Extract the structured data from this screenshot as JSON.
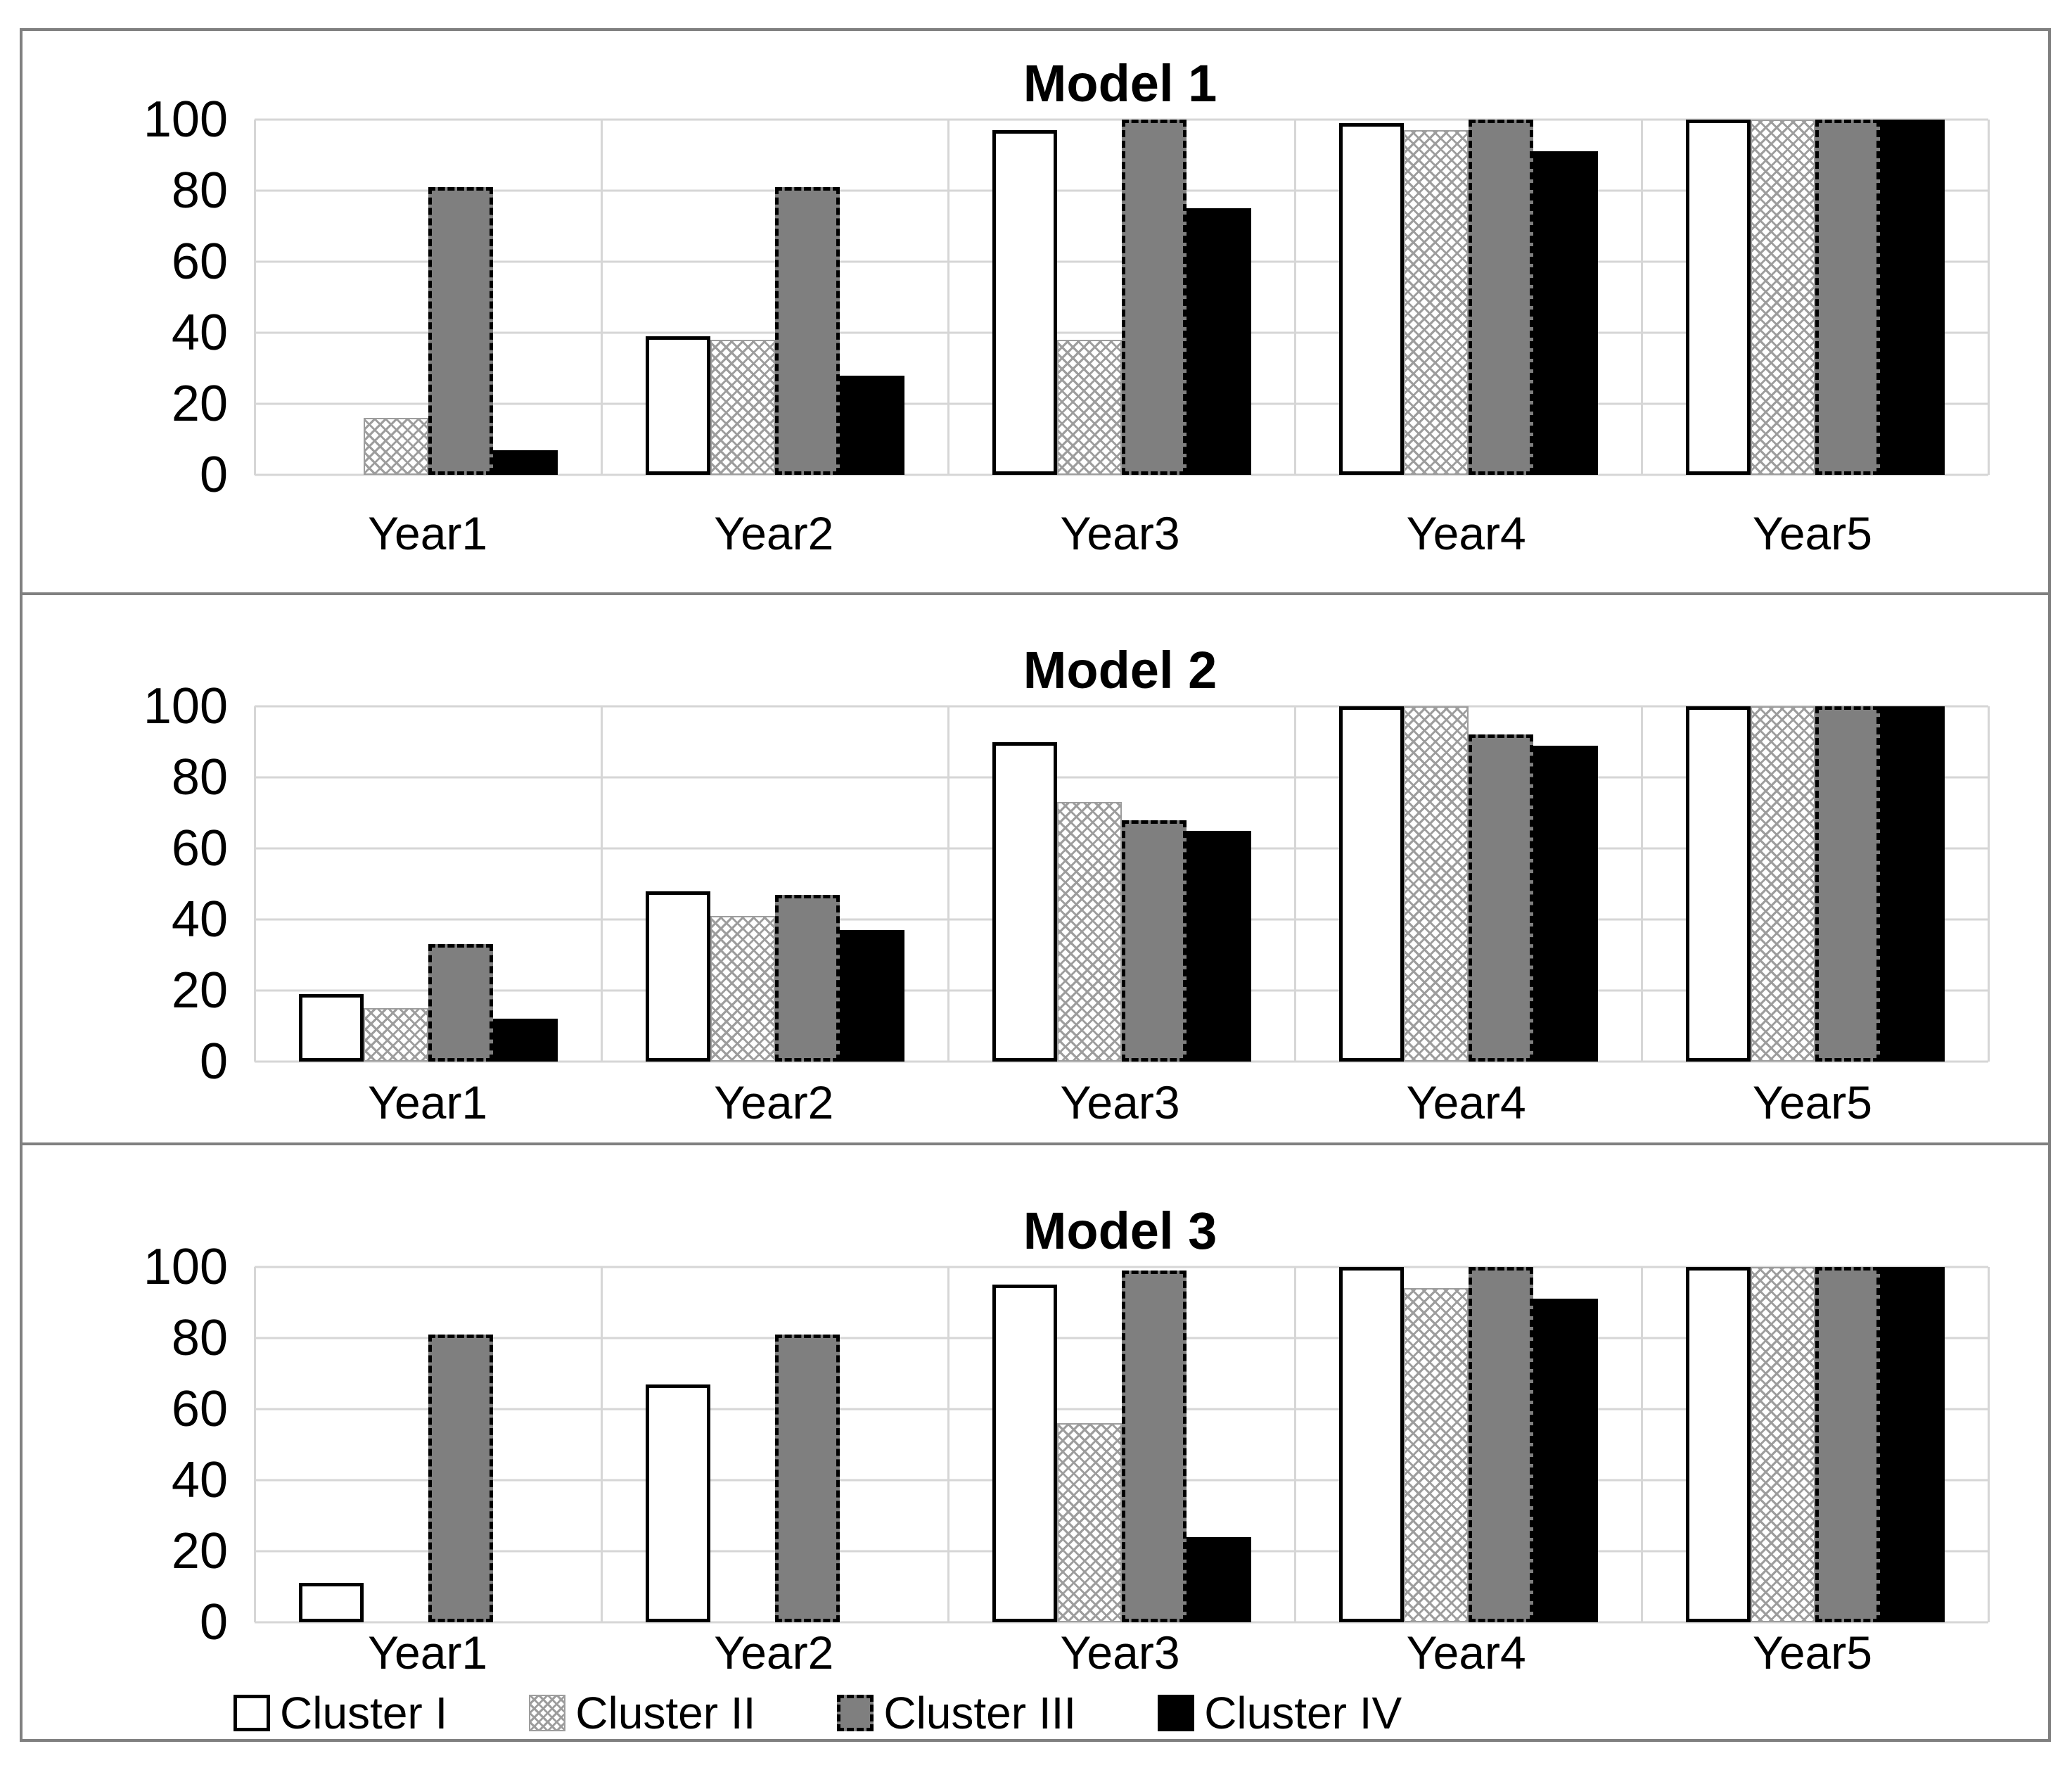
{
  "figure": {
    "background": "#ffffff",
    "frame_border_color": "#808080",
    "gridline_color": "#d6d6d6"
  },
  "colors": {
    "cluster1_fill": "#ffffff",
    "cluster1_border": "#000000",
    "cluster2_pattern_line": "#9d9d9d",
    "cluster3_fill": "#7f7f7f",
    "cluster3_border": "#000000",
    "cluster4_fill": "#000000"
  },
  "legend": {
    "items": [
      {
        "label": "Cluster I",
        "style": "white-outline"
      },
      {
        "label": "Cluster II",
        "style": "crosshatch"
      },
      {
        "label": "Cluster III",
        "style": "gray-dashed"
      },
      {
        "label": "Cluster IV",
        "style": "black-solid"
      }
    ],
    "position": "bottom"
  },
  "chart_data": [
    {
      "type": "bar",
      "title": "Model 1",
      "categories": [
        "Year1",
        "Year2",
        "Year3",
        "Year4",
        "Year5"
      ],
      "series": [
        {
          "name": "Cluster I",
          "values": [
            0,
            39,
            97,
            99,
            100
          ]
        },
        {
          "name": "Cluster II",
          "values": [
            16,
            38,
            38,
            97,
            100
          ]
        },
        {
          "name": "Cluster III",
          "values": [
            81,
            81,
            100,
            100,
            100
          ]
        },
        {
          "name": "Cluster IV",
          "values": [
            7,
            28,
            75,
            91,
            100
          ]
        }
      ],
      "xlabel": "",
      "ylabel": "",
      "ylim": [
        0,
        100
      ],
      "yticks": [
        0,
        20,
        40,
        60,
        80,
        100
      ],
      "grid": true,
      "legend_position": "bottom-shared"
    },
    {
      "type": "bar",
      "title": "Model 2",
      "categories": [
        "Year1",
        "Year2",
        "Year3",
        "Year4",
        "Year5"
      ],
      "series": [
        {
          "name": "Cluster I",
          "values": [
            19,
            48,
            90,
            100,
            100
          ]
        },
        {
          "name": "Cluster II",
          "values": [
            15,
            41,
            73,
            100,
            100
          ]
        },
        {
          "name": "Cluster III",
          "values": [
            33,
            47,
            68,
            92,
            100
          ]
        },
        {
          "name": "Cluster IV",
          "values": [
            12,
            37,
            65,
            89,
            100
          ]
        }
      ],
      "xlabel": "",
      "ylabel": "",
      "ylim": [
        0,
        100
      ],
      "yticks": [
        0,
        20,
        40,
        60,
        80,
        100
      ],
      "grid": true,
      "legend_position": "bottom-shared"
    },
    {
      "type": "bar",
      "title": "Model 3",
      "categories": [
        "Year1",
        "Year2",
        "Year3",
        "Year4",
        "Year5"
      ],
      "series": [
        {
          "name": "Cluster I",
          "values": [
            11,
            67,
            95,
            100,
            100
          ]
        },
        {
          "name": "Cluster II",
          "values": [
            0,
            0,
            56,
            94,
            100
          ]
        },
        {
          "name": "Cluster III",
          "values": [
            81,
            81,
            99,
            100,
            100
          ]
        },
        {
          "name": "Cluster IV",
          "values": [
            0,
            0,
            24,
            91,
            100
          ]
        }
      ],
      "xlabel": "",
      "ylabel": "",
      "ylim": [
        0,
        100
      ],
      "yticks": [
        0,
        20,
        40,
        60,
        80,
        100
      ],
      "grid": true,
      "legend_position": "bottom-shared"
    }
  ]
}
